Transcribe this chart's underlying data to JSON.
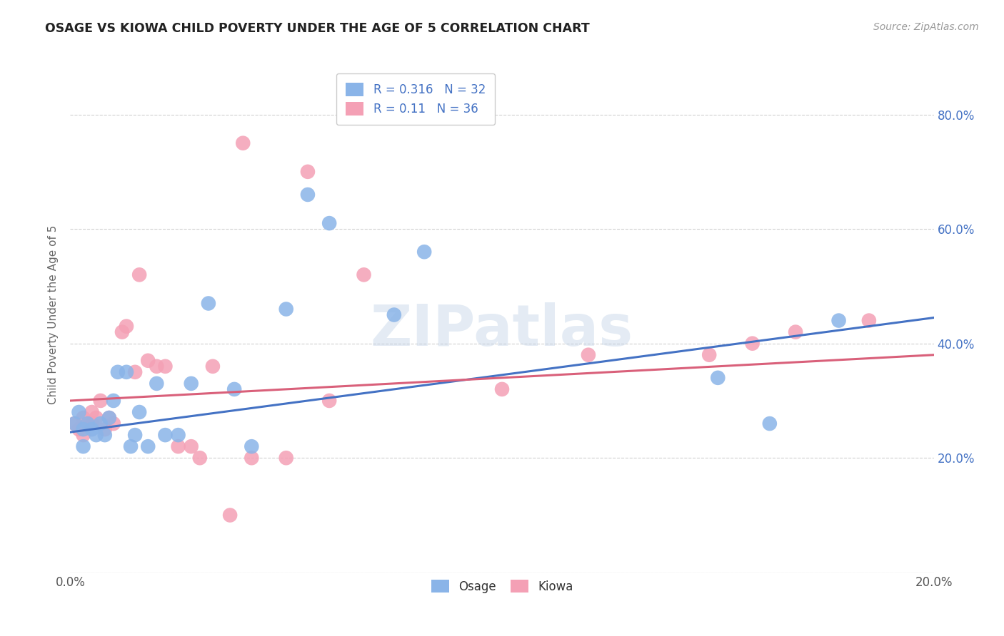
{
  "title": "OSAGE VS KIOWA CHILD POVERTY UNDER THE AGE OF 5 CORRELATION CHART",
  "source": "Source: ZipAtlas.com",
  "ylabel_label": "Child Poverty Under the Age of 5",
  "xlim": [
    0.0,
    0.2
  ],
  "ylim": [
    0.0,
    0.9
  ],
  "xtick_vals": [
    0.0,
    0.04,
    0.08,
    0.12,
    0.16,
    0.2
  ],
  "xtick_labels": [
    "0.0%",
    "",
    "",
    "",
    "",
    "20.0%"
  ],
  "ytick_vals": [
    0.0,
    0.2,
    0.4,
    0.6,
    0.8
  ],
  "ytick_labels": [
    "",
    "20.0%",
    "40.0%",
    "60.0%",
    "80.0%"
  ],
  "osage_color": "#8ab4e8",
  "kiowa_color": "#f4a0b5",
  "osage_line_color": "#4472c4",
  "kiowa_line_color": "#d9607a",
  "osage_R": 0.316,
  "osage_N": 32,
  "kiowa_R": 0.11,
  "kiowa_N": 36,
  "watermark": "ZIPatlas",
  "background_color": "#ffffff",
  "grid_color": "#d0d0d0",
  "osage_x": [
    0.001,
    0.002,
    0.003,
    0.003,
    0.004,
    0.005,
    0.006,
    0.007,
    0.008,
    0.009,
    0.01,
    0.011,
    0.013,
    0.014,
    0.015,
    0.016,
    0.018,
    0.02,
    0.022,
    0.025,
    0.028,
    0.032,
    0.038,
    0.042,
    0.05,
    0.055,
    0.06,
    0.075,
    0.082,
    0.15,
    0.162,
    0.178
  ],
  "osage_y": [
    0.26,
    0.28,
    0.25,
    0.22,
    0.26,
    0.25,
    0.24,
    0.26,
    0.24,
    0.27,
    0.3,
    0.35,
    0.35,
    0.22,
    0.24,
    0.28,
    0.22,
    0.33,
    0.24,
    0.24,
    0.33,
    0.47,
    0.32,
    0.22,
    0.46,
    0.66,
    0.61,
    0.45,
    0.56,
    0.34,
    0.26,
    0.44
  ],
  "kiowa_x": [
    0.001,
    0.002,
    0.003,
    0.003,
    0.004,
    0.005,
    0.005,
    0.006,
    0.007,
    0.008,
    0.009,
    0.01,
    0.012,
    0.013,
    0.015,
    0.016,
    0.018,
    0.02,
    0.022,
    0.025,
    0.028,
    0.03,
    0.033,
    0.037,
    0.04,
    0.042,
    0.05,
    0.055,
    0.06,
    0.068,
    0.1,
    0.12,
    0.148,
    0.158,
    0.168,
    0.185
  ],
  "kiowa_y": [
    0.26,
    0.25,
    0.27,
    0.24,
    0.26,
    0.26,
    0.28,
    0.27,
    0.3,
    0.25,
    0.27,
    0.26,
    0.42,
    0.43,
    0.35,
    0.52,
    0.37,
    0.36,
    0.36,
    0.22,
    0.22,
    0.2,
    0.36,
    0.1,
    0.75,
    0.2,
    0.2,
    0.7,
    0.3,
    0.52,
    0.32,
    0.38,
    0.38,
    0.4,
    0.42,
    0.44
  ],
  "osage_line_x": [
    0.0,
    0.2
  ],
  "osage_line_y": [
    0.245,
    0.445
  ],
  "kiowa_line_x": [
    0.0,
    0.2
  ],
  "kiowa_line_y": [
    0.3,
    0.38
  ]
}
